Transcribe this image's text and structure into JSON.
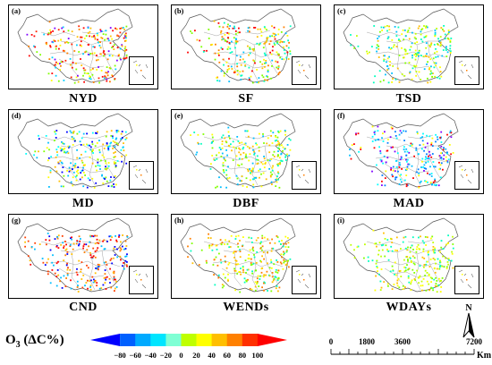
{
  "panels": [
    {
      "tag": "(a)",
      "caption": "NYD",
      "palette": [
        "#ff0000",
        "#ff2200",
        "#ff7f00",
        "#ffbf00",
        "#ffff00",
        "#7fff00",
        "#00cfff",
        "#7f00ff"
      ]
    },
    {
      "tag": "(b)",
      "caption": "SF",
      "palette": [
        "#ffbf00",
        "#ffff00",
        "#ff7f00",
        "#7fff00",
        "#00ffbf",
        "#00bfff",
        "#ff0000"
      ]
    },
    {
      "tag": "(c)",
      "caption": "TSD",
      "palette": [
        "#ffff00",
        "#bfff00",
        "#7fff00",
        "#ffbf00",
        "#00ffbf",
        "#00bfff"
      ]
    },
    {
      "tag": "(d)",
      "caption": "MD",
      "palette": [
        "#00ffff",
        "#00bfff",
        "#7fff00",
        "#ffff00",
        "#ffbf00",
        "#0000ff"
      ]
    },
    {
      "tag": "(e)",
      "caption": "DBF",
      "palette": [
        "#ffff00",
        "#7fff00",
        "#00ffbf",
        "#00bfff",
        "#ffbf00"
      ]
    },
    {
      "tag": "(f)",
      "caption": "MAD",
      "palette": [
        "#00bfff",
        "#007fff",
        "#00ffff",
        "#ff0000",
        "#7f00ff",
        "#ffff00"
      ]
    },
    {
      "tag": "(g)",
      "caption": "CND",
      "palette": [
        "#ff0000",
        "#ff4000",
        "#ff7f00",
        "#ffbf00",
        "#00bfff",
        "#0000ff"
      ]
    },
    {
      "tag": "(h)",
      "caption": "WENDs",
      "palette": [
        "#ffff00",
        "#ffbf00",
        "#7fff00",
        "#00ffbf",
        "#ff7f00"
      ]
    },
    {
      "tag": "(i)",
      "caption": "WDAYs",
      "palette": [
        "#ffff00",
        "#bfff00",
        "#7fff00",
        "#00ffbf",
        "#ffbf00"
      ]
    }
  ],
  "legend": {
    "title_main": "O",
    "title_sub": "3",
    "title_rest": " (ΔC%)",
    "labels": [
      "-80",
      "-60",
      "-40",
      "-20",
      "0",
      "20",
      "40",
      "60",
      "80",
      "100"
    ],
    "colors": [
      "#0000ff",
      "#0060ff",
      "#00aaff",
      "#00e5ff",
      "#7fffd4",
      "#bfff00",
      "#ffff00",
      "#ffbf00",
      "#ff8000",
      "#ff3000",
      "#ff0000"
    ]
  },
  "scale_bar": {
    "ticks": [
      "0",
      "1800",
      "3600",
      "7200"
    ],
    "unit": "Km"
  },
  "north_arrow": {
    "label": "N"
  }
}
